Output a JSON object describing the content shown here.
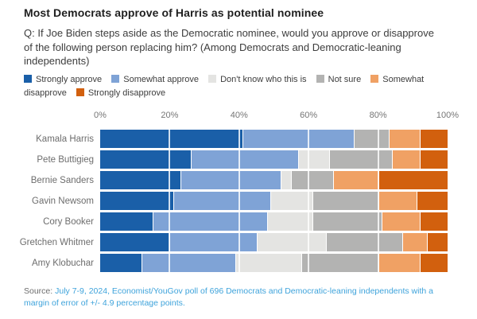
{
  "title": "Most Democrats approve of Harris as potential nominee",
  "question": "Q: If Joe Biden steps aside as the Democratic nominee, would you approve or disapprove of the following person replacing him? (Among Democrats and Democratic-leaning independents)",
  "legend": [
    {
      "label": "Strongly approve",
      "color": "#1a5fa8"
    },
    {
      "label": "Somewhat approve",
      "color": "#7fa3d6"
    },
    {
      "label": "Don't know who this is",
      "color": "#e4e4e2"
    },
    {
      "label": "Not sure",
      "color": "#b3b3b2"
    },
    {
      "label": "Somewhat disapprove",
      "color": "#f0a164"
    },
    {
      "label": "Strongly disapprove",
      "color": "#d2600e"
    }
  ],
  "chart_data": {
    "type": "bar",
    "stacked": true,
    "orientation": "horizontal",
    "title": "Most Democrats approve of Harris as potential nominee",
    "xlabel": "",
    "ylabel": "",
    "xlim": [
      0,
      100
    ],
    "x_ticks": [
      0,
      20,
      40,
      60,
      80,
      100
    ],
    "x_tick_labels": [
      "0%",
      "20%",
      "40%",
      "60%",
      "80%",
      "100%"
    ],
    "grid": "vertical-white-overlay",
    "legend_position": "top",
    "categories": [
      "Kamala Harris",
      "Pete Buttigieg",
      "Bernie Sanders",
      "Gavin Newsom",
      "Cory Booker",
      "Gretchen Whitmer",
      "Amy Klobuchar"
    ],
    "series": [
      {
        "name": "Strongly approve",
        "color": "#1a5fa8",
        "values": [
          41,
          26,
          23,
          21,
          15,
          20,
          12
        ]
      },
      {
        "name": "Somewhat approve",
        "color": "#7fa3d6",
        "values": [
          32,
          31,
          29,
          28,
          33,
          25,
          27
        ]
      },
      {
        "name": "Don't know who this is",
        "color": "#e4e4e2",
        "values": [
          0,
          9,
          3,
          12,
          13,
          20,
          19
        ]
      },
      {
        "name": "Not sure",
        "color": "#b3b3b2",
        "values": [
          10,
          18,
          12,
          19,
          20,
          22,
          22
        ]
      },
      {
        "name": "Somewhat disapprove",
        "color": "#f0a164",
        "values": [
          9,
          8,
          13,
          11,
          11,
          7,
          12
        ]
      },
      {
        "name": "Strongly disapprove",
        "color": "#d2600e",
        "values": [
          8,
          8,
          20,
          9,
          8,
          6,
          8
        ]
      }
    ]
  },
  "source": {
    "prefix": "Source:",
    "text": " July 7-9, 2024, Economist/YouGov poll of 696 Democrats and Democratic-leaning independents with a margin of error of +/- 4.9 percentage points."
  }
}
